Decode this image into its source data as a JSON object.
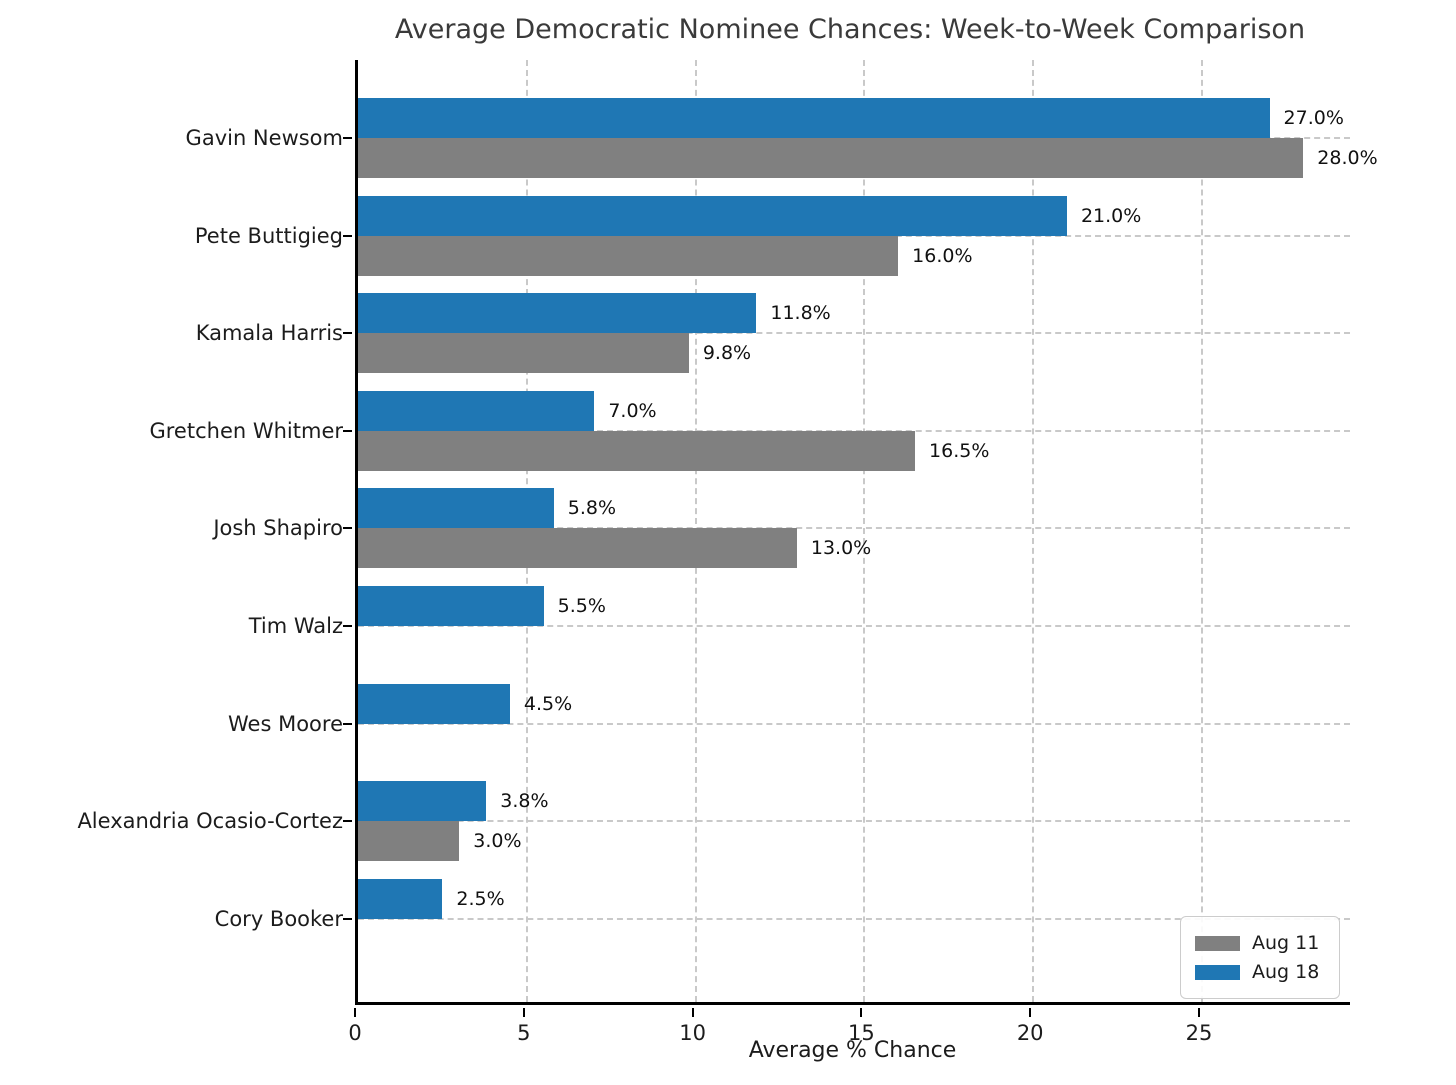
{
  "chart_data": {
    "type": "bar",
    "orientation": "horizontal",
    "title": "Average Democratic Nominee Chances: Week-to-Week Comparison",
    "xlabel": "Average % Chance",
    "ylabel": "",
    "xlim": [
      0,
      29.5
    ],
    "x_ticks": [
      0,
      5,
      10,
      15,
      20,
      25
    ],
    "grid": "dashed-both-axes",
    "categories": [
      "Gavin Newsom",
      "Pete Buttigieg",
      "Kamala Harris",
      "Gretchen Whitmer",
      "Josh Shapiro",
      "Tim Walz",
      "Wes Moore",
      "Alexandria Ocasio-Cortez",
      "Cory Booker"
    ],
    "series": [
      {
        "name": "Aug 11",
        "color": "#808080",
        "values": [
          28.0,
          16.0,
          9.8,
          16.5,
          13.0,
          null,
          null,
          3.0,
          null
        ],
        "labels": [
          "28.0%",
          "16.0%",
          "9.8%",
          "16.5%",
          "13.0%",
          null,
          null,
          "3.0%",
          null
        ]
      },
      {
        "name": "Aug 18",
        "color": "#1f77b4",
        "values": [
          27.0,
          21.0,
          11.8,
          7.0,
          5.8,
          5.5,
          4.5,
          3.8,
          2.5
        ],
        "labels": [
          "27.0%",
          "21.0%",
          "11.8%",
          "7.0%",
          "5.8%",
          "5.5%",
          "4.5%",
          "3.8%",
          "2.5%"
        ]
      }
    ],
    "legend": {
      "position": "lower right",
      "entries": [
        {
          "label": "Aug 11",
          "color": "#808080"
        },
        {
          "label": "Aug 18",
          "color": "#1f77b4"
        }
      ]
    }
  }
}
